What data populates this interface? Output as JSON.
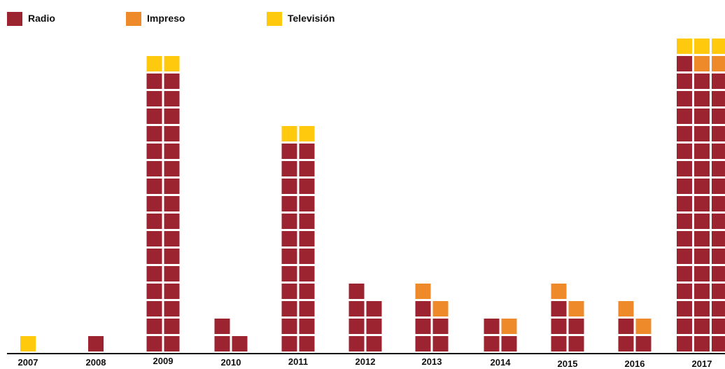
{
  "chart_data": {
    "type": "bar",
    "stacked": true,
    "title": "",
    "xlabel": "",
    "ylabel": "",
    "categories": [
      "2007",
      "2008",
      "2009",
      "2010",
      "2011",
      "2012",
      "2013",
      "2014",
      "2015",
      "2016",
      "2017"
    ],
    "series": [
      {
        "name": "Radio",
        "color": "#9b2430",
        "values": [
          0,
          1,
          32,
          3,
          24,
          7,
          5,
          3,
          5,
          3,
          49
        ]
      },
      {
        "name": "Impreso",
        "color": "#ef8a2a",
        "values": [
          0,
          0,
          0,
          0,
          0,
          0,
          2,
          1,
          2,
          2,
          2
        ]
      },
      {
        "name": "Televisión",
        "color": "#ffc90e",
        "values": [
          1,
          0,
          2,
          0,
          2,
          0,
          0,
          0,
          0,
          0,
          3
        ]
      }
    ],
    "grid": false,
    "legend_position": "top-left"
  }
}
